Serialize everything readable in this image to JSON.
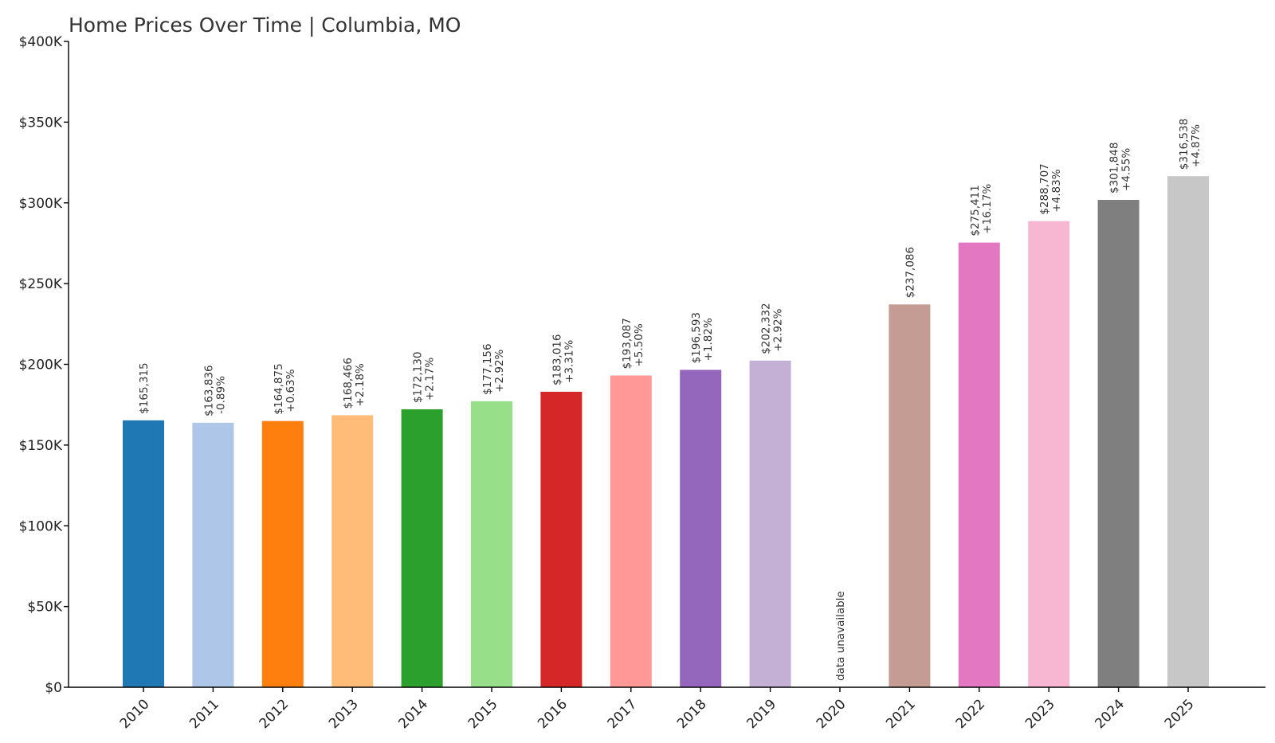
{
  "chart_data": {
    "type": "bar",
    "title": "Home Prices Over Time | Columbia, MO",
    "xlabel": "",
    "ylabel": "",
    "ylim": [
      0,
      400000
    ],
    "grid": false,
    "legend": "none",
    "yticks": [
      {
        "value": 0,
        "label": "$0"
      },
      {
        "value": 50000,
        "label": "$50K"
      },
      {
        "value": 100000,
        "label": "$100K"
      },
      {
        "value": 150000,
        "label": "$150K"
      },
      {
        "value": 200000,
        "label": "$200K"
      },
      {
        "value": 250000,
        "label": "$250K"
      },
      {
        "value": 300000,
        "label": "$300K"
      },
      {
        "value": 350000,
        "label": "$350K"
      },
      {
        "value": 400000,
        "label": "$400K"
      }
    ],
    "categories": [
      "2010",
      "2011",
      "2012",
      "2013",
      "2014",
      "2015",
      "2016",
      "2017",
      "2018",
      "2019",
      "2020",
      "2021",
      "2022",
      "2023",
      "2024",
      "2025"
    ],
    "values": [
      165315,
      163836,
      164875,
      168466,
      172130,
      177156,
      183016,
      193087,
      196593,
      202332,
      null,
      237086,
      275411,
      288707,
      301848,
      316538
    ],
    "price_labels": [
      "$165,315",
      "$163,836",
      "$164,875",
      "$168,466",
      "$172,130",
      "$177,156",
      "$183,016",
      "$193,087",
      "$196,593",
      "$202,332",
      "",
      "$237,086",
      "$275,411",
      "$288,707",
      "$301,848",
      "$316,538"
    ],
    "change_labels": [
      "",
      "-0.89%",
      "+0.63%",
      "+2.18%",
      "+2.17%",
      "+2.92%",
      "+3.31%",
      "+5.50%",
      "+1.82%",
      "+2.92%",
      "",
      "",
      "+16.17%",
      "+4.83%",
      "+4.55%",
      "+4.87%"
    ],
    "missing_label": "data unavailable",
    "colors": [
      "#1f77b4",
      "#aec7e8",
      "#ff7f0e",
      "#ffbb78",
      "#2ca02c",
      "#98df8a",
      "#d62728",
      "#ff9896",
      "#9467bd",
      "#c5b0d5",
      "#8c564b",
      "#c49c94",
      "#e377c2",
      "#f7b6d2",
      "#7f7f7f",
      "#c7c7c7"
    ]
  }
}
